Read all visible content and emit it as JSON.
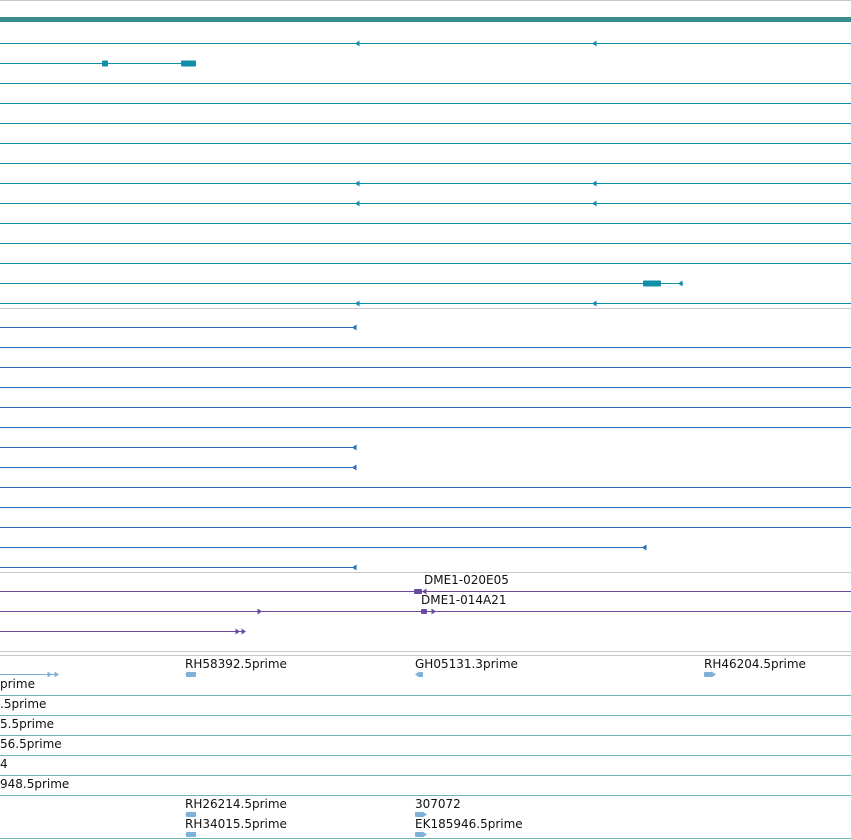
{
  "colors": {
    "gene_teal": "#0f8fa8",
    "gene_blue": "#2a6db8",
    "cdna_purple": "#6a4a9c",
    "est_light": "#7fb0d8",
    "est_line": "#6fb3b0",
    "divider": "#c8c8c8",
    "top_bar": "#3a8c8c"
  },
  "icons": {
    "arrow_left": "left-arrowhead-icon",
    "arrow_right": "right-arrowhead-icon"
  },
  "cdna_track": {
    "labels": [
      "DME1-020E05",
      "DME1-014A21"
    ]
  },
  "est_track": {
    "labels": [
      "RH58392.5prime",
      "GH05131.3prime",
      "RH46204.5prime",
      "prime",
      ".5prime",
      "5.5prime",
      "56.5prime",
      "4",
      "948.5prime",
      "RH26214.5prime",
      "307072",
      "RH34015.5prime",
      "EK185946.5prime"
    ]
  }
}
